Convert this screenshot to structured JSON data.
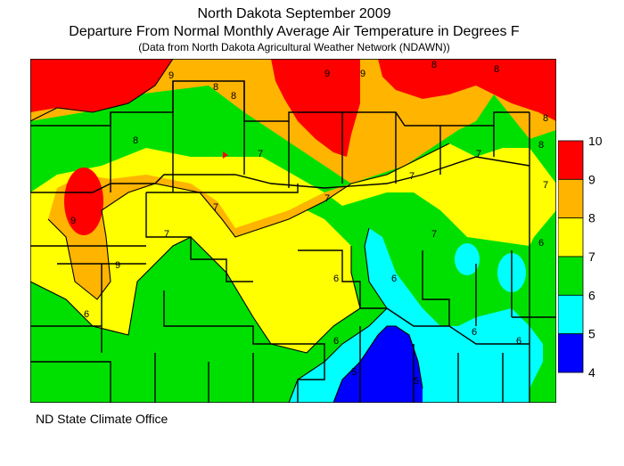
{
  "title": "North Dakota September 2009",
  "subtitle": "Departure From Normal Monthly Average Air Temperature in Degrees F",
  "note": "(Data from North Dakota Agricultural Weather Network (NDAWN))",
  "footer": "ND State Climate Office",
  "legend": {
    "ticks": [
      "10",
      "9",
      "8",
      "7",
      "6",
      "5",
      "4"
    ],
    "bands": [
      {
        "color": "#ff0000",
        "range": [
          9,
          10
        ]
      },
      {
        "color": "#ffb400",
        "range": [
          8,
          9
        ]
      },
      {
        "color": "#ffff00",
        "range": [
          7,
          8
        ]
      },
      {
        "color": "#00e000",
        "range": [
          6,
          7
        ]
      },
      {
        "color": "#00ffff",
        "range": [
          5,
          6
        ]
      },
      {
        "color": "#0000ff",
        "range": [
          4,
          5
        ]
      }
    ]
  },
  "contour_labels": [
    "9",
    "8",
    "8",
    "9",
    "9",
    "8",
    "8",
    "8",
    "8",
    "8",
    "7",
    "7",
    "7",
    "7",
    "7",
    "7",
    "7",
    "7",
    "6",
    "6",
    "6",
    "6",
    "6",
    "6",
    "5",
    "5",
    "6",
    "9",
    "9"
  ]
}
